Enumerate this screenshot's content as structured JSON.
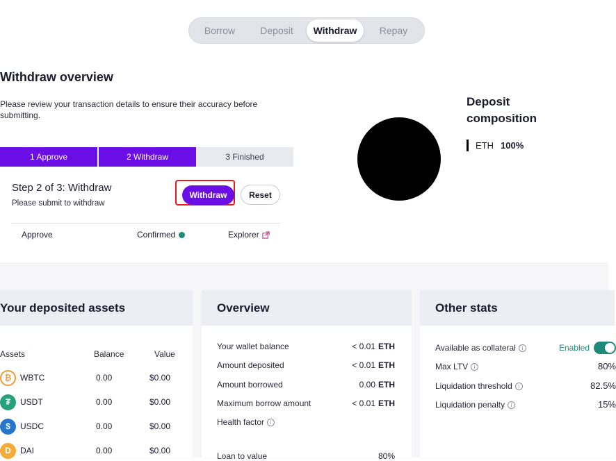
{
  "tabs": [
    {
      "label": "Borrow",
      "active": false
    },
    {
      "label": "Deposit",
      "active": false
    },
    {
      "label": "Withdraw",
      "active": true
    },
    {
      "label": "Repay",
      "active": false
    }
  ],
  "page_title": "Withdraw overview",
  "description": "Please review your transaction details to ensure their accuracy before submitting.",
  "stepper": [
    {
      "label": "1 Approve",
      "state": "done"
    },
    {
      "label": "2 Withdraw",
      "state": "done"
    },
    {
      "label": "3 Finished",
      "state": "todo"
    }
  ],
  "step": {
    "title": "Step 2 of 3: Withdraw",
    "subtitle": "Please submit to withdraw",
    "primary_button": "Withdraw",
    "secondary_button": "Reset"
  },
  "approve_row": {
    "label": "Approve",
    "status": "Confirmed",
    "explorer": "Explorer"
  },
  "composition": {
    "title": "Deposit composition",
    "asset": "ETH",
    "percent": "100%"
  },
  "deposited_assets": {
    "title": "Your deposited assets",
    "columns": [
      "Assets",
      "Balance",
      "Value"
    ],
    "rows": [
      {
        "name": "WBTC",
        "balance": "0.00",
        "value": "$0.00",
        "icon": "wbtc-icon",
        "color": "#ffffff"
      },
      {
        "name": "USDT",
        "balance": "0.00",
        "value": "$0.00",
        "icon": "usdt-icon",
        "color": "#26a17b"
      },
      {
        "name": "USDC",
        "balance": "0.00",
        "value": "$0.00",
        "icon": "usdc-icon",
        "color": "#2775ca"
      },
      {
        "name": "DAI",
        "balance": "0.00",
        "value": "$0.00",
        "icon": "dai-icon",
        "color": "#f5ac37"
      }
    ]
  },
  "overview": {
    "title": "Overview",
    "rows": [
      {
        "label": "Your wallet balance",
        "value": "< 0.01",
        "unit": "ETH"
      },
      {
        "label": "Amount deposited",
        "value": "< 0.01",
        "unit": "ETH"
      },
      {
        "label": "Amount borrowed",
        "value": "0.00",
        "unit": "ETH"
      },
      {
        "label": "Maximum borrow amount",
        "value": "< 0.01",
        "unit": "ETH"
      },
      {
        "label": "Health factor",
        "value": "",
        "unit": ""
      }
    ],
    "loan_to_value_label": "Loan to value",
    "loan_to_value": "80%"
  },
  "other_stats": {
    "title": "Other stats",
    "rows": [
      {
        "label": "Available as collateral",
        "value": "Enabled"
      },
      {
        "label": "Max LTV",
        "value": "80%"
      },
      {
        "label": "Liquidation threshold",
        "value": "82.5%"
      },
      {
        "label": "Liquidation penalty",
        "value": "15%"
      }
    ]
  },
  "colors": {
    "accent": "#6b0ee6",
    "success": "#1f8a7a",
    "highlight": "#e21c1c"
  }
}
